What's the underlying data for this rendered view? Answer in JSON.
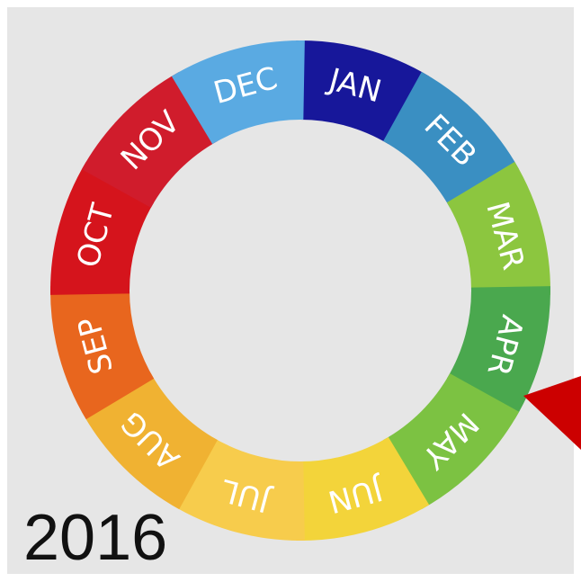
{
  "months": [
    "JAN",
    "FEB",
    "MAR",
    "APR",
    "MAY",
    "JUN",
    "JUL",
    "AUG",
    "SEP",
    "OCT",
    "NOV",
    "DEC"
  ],
  "year": "2016"
}
